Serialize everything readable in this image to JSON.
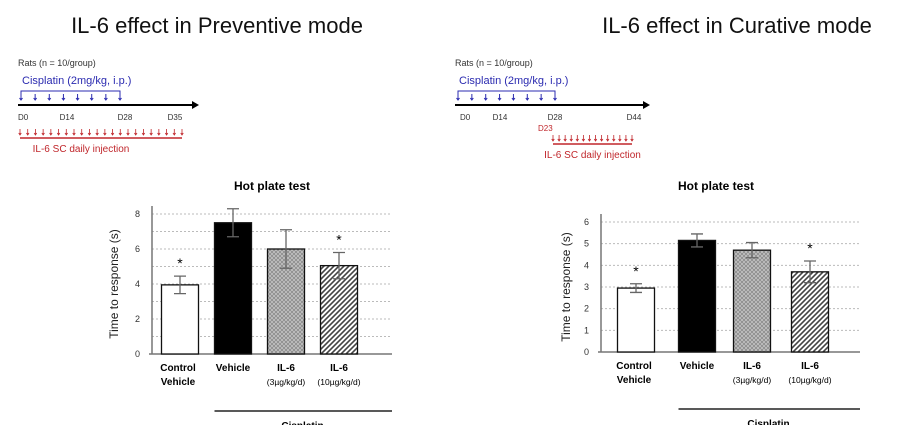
{
  "panels": [
    {
      "title": "IL-6 effect in Preventive mode",
      "protocol": {
        "rats": "Rats (n = 10/group)",
        "cisplatin": "Cisplatin (2mg/kg, i.p.)",
        "days": [
          "D0",
          "D14",
          "D28",
          "D35"
        ],
        "il6_start": "",
        "il6": "IL-6  SC daily injection"
      }
    },
    {
      "title": "IL-6 effect in Curative mode",
      "protocol": {
        "rats": "Rats (n = 10/group)",
        "cisplatin": "Cisplatin (2mg/kg, i.p.)",
        "days": [
          "D0",
          "D14",
          "D28",
          "D44"
        ],
        "il6_start": "D23",
        "il6": "IL-6  SC daily injection"
      }
    }
  ],
  "colors": {
    "cisplatin": "#2b2bb0",
    "il6": "#c0262b",
    "vehicle": "#000000",
    "il6_low": "#b8b8b8"
  },
  "chart_data": [
    {
      "type": "bar",
      "title": "Hot plate test",
      "ylabel": "Time to response (s)",
      "ylim": [
        0,
        8
      ],
      "yticks": [
        0,
        2,
        4,
        6,
        8
      ],
      "grid": true,
      "categories": [
        [
          "Control",
          "Vehicle"
        ],
        [
          "Vehicle"
        ],
        [
          "IL-6",
          "(3µg/kg/d)"
        ],
        [
          "IL-6",
          "(10µg/kg/d)"
        ]
      ],
      "values": [
        3.95,
        7.5,
        6.0,
        5.05
      ],
      "errors": [
        0.5,
        0.8,
        1.1,
        0.75
      ],
      "significant": [
        true,
        false,
        false,
        true
      ],
      "fills": [
        "white",
        "black",
        "crosshatch",
        "diagonal"
      ],
      "group_label": "Cisplatin",
      "sig_mark": "*"
    },
    {
      "type": "bar",
      "title": "Hot plate test",
      "ylabel": "Time to response (s)",
      "ylim": [
        0,
        6
      ],
      "yticks": [
        0,
        1,
        2,
        3,
        4,
        5,
        6
      ],
      "grid": true,
      "categories": [
        [
          "Control",
          "Vehicle"
        ],
        [
          "Vehicle"
        ],
        [
          "IL-6",
          "(3µg/kg/d)"
        ],
        [
          "IL-6",
          "(10µg/kg/d)"
        ]
      ],
      "values": [
        2.95,
        5.15,
        4.7,
        3.7
      ],
      "errors": [
        0.2,
        0.3,
        0.35,
        0.5
      ],
      "significant": [
        true,
        false,
        false,
        true
      ],
      "fills": [
        "white",
        "black",
        "crosshatch",
        "diagonal"
      ],
      "group_label": "Cisplatin",
      "sig_mark": "*"
    }
  ]
}
